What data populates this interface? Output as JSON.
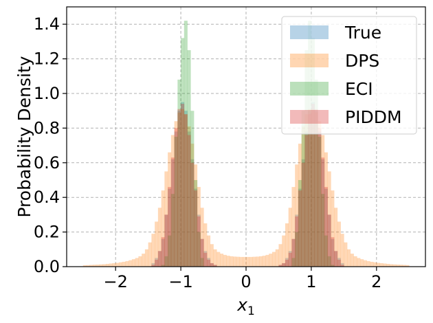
{
  "chart_data": {
    "type": "histogram",
    "xlabel": "x",
    "xlabel_subscript": "1",
    "ylabel": "Probability Density",
    "xlim": [
      -2.75,
      2.75
    ],
    "ylim": [
      0,
      1.5
    ],
    "x_ticks": [
      -2,
      -1,
      0,
      1,
      2
    ],
    "x_tick_labels": [
      "−2",
      "−1",
      "0",
      "1",
      "2"
    ],
    "y_ticks": [
      0.0,
      0.2,
      0.4,
      0.6,
      0.8,
      1.0,
      1.2,
      1.4
    ],
    "y_tick_labels": [
      "0.0",
      "0.2",
      "0.4",
      "0.6",
      "0.8",
      "1.0",
      "1.2",
      "1.4"
    ],
    "grid": true,
    "legend_position": "top-right",
    "bin_width": 0.05,
    "series": [
      {
        "name": "True",
        "color": "#1f77b4",
        "opacity": 0.3,
        "x_range": [
          -1.5,
          1.5
        ],
        "x": [
          -1.45,
          -1.4,
          -1.35,
          -1.3,
          -1.25,
          -1.2,
          -1.15,
          -1.1,
          -1.05,
          -1.0,
          -0.95,
          -0.9,
          -0.85,
          -0.8,
          -0.75,
          -0.7,
          -0.65,
          -0.6,
          -0.55,
          -0.5,
          0.5,
          0.55,
          0.6,
          0.65,
          0.7,
          0.75,
          0.8,
          0.85,
          0.9,
          0.95,
          1.0,
          1.05,
          1.1,
          1.15,
          1.2,
          1.25,
          1.3,
          1.35,
          1.4,
          1.45
        ],
        "y": [
          0.02,
          0.05,
          0.09,
          0.16,
          0.3,
          0.45,
          0.62,
          0.78,
          0.9,
          0.95,
          0.9,
          0.78,
          0.62,
          0.45,
          0.3,
          0.16,
          0.09,
          0.05,
          0.02,
          0.01,
          0.01,
          0.02,
          0.05,
          0.09,
          0.16,
          0.3,
          0.45,
          0.62,
          0.78,
          0.9,
          0.95,
          0.9,
          0.78,
          0.62,
          0.45,
          0.3,
          0.16,
          0.09,
          0.05,
          0.02
        ]
      },
      {
        "name": "DPS",
        "color": "#ff7f0e",
        "opacity": 0.3,
        "x_range": [
          -2.5,
          2.5
        ],
        "x": [
          -2.5,
          -2.45,
          -2.4,
          -2.35,
          -2.3,
          -2.25,
          -2.2,
          -2.15,
          -2.1,
          -2.05,
          -2.0,
          -1.95,
          -1.9,
          -1.85,
          -1.8,
          -1.75,
          -1.7,
          -1.65,
          -1.6,
          -1.55,
          -1.5,
          -1.45,
          -1.4,
          -1.35,
          -1.3,
          -1.25,
          -1.2,
          -1.15,
          -1.1,
          -1.05,
          -1.0,
          -0.95,
          -0.9,
          -0.85,
          -0.8,
          -0.75,
          -0.7,
          -0.65,
          -0.6,
          -0.55,
          -0.5,
          -0.45,
          -0.4,
          -0.35,
          -0.3,
          -0.25,
          -0.2,
          -0.15,
          -0.1,
          -0.05,
          0.0,
          0.05,
          0.1,
          0.15,
          0.2,
          0.25,
          0.3,
          0.35,
          0.4,
          0.45,
          0.5,
          0.55,
          0.6,
          0.65,
          0.7,
          0.75,
          0.8,
          0.85,
          0.9,
          0.95,
          1.0,
          1.05,
          1.1,
          1.15,
          1.2,
          1.25,
          1.3,
          1.35,
          1.4,
          1.45,
          1.5,
          1.55,
          1.6,
          1.65,
          1.7,
          1.75,
          1.8,
          1.85,
          1.9,
          1.95,
          2.0,
          2.05,
          2.1,
          2.15,
          2.2,
          2.25,
          2.3,
          2.35,
          2.4,
          2.45
        ],
        "y": [
          0.008,
          0.009,
          0.01,
          0.011,
          0.012,
          0.013,
          0.014,
          0.016,
          0.018,
          0.02,
          0.022,
          0.025,
          0.028,
          0.032,
          0.037,
          0.043,
          0.05,
          0.06,
          0.075,
          0.1,
          0.14,
          0.19,
          0.26,
          0.34,
          0.44,
          0.55,
          0.66,
          0.76,
          0.84,
          0.89,
          0.91,
          0.88,
          0.81,
          0.71,
          0.59,
          0.46,
          0.34,
          0.25,
          0.18,
          0.13,
          0.1,
          0.085,
          0.075,
          0.068,
          0.063,
          0.06,
          0.058,
          0.057,
          0.056,
          0.056,
          0.056,
          0.056,
          0.057,
          0.058,
          0.06,
          0.063,
          0.068,
          0.075,
          0.085,
          0.1,
          0.13,
          0.18,
          0.25,
          0.34,
          0.46,
          0.59,
          0.71,
          0.81,
          0.88,
          0.91,
          0.91,
          0.89,
          0.84,
          0.76,
          0.66,
          0.55,
          0.44,
          0.34,
          0.26,
          0.19,
          0.14,
          0.1,
          0.075,
          0.06,
          0.05,
          0.043,
          0.037,
          0.032,
          0.028,
          0.025,
          0.022,
          0.02,
          0.018,
          0.016,
          0.014,
          0.013,
          0.012,
          0.011,
          0.01,
          0.009
        ]
      },
      {
        "name": "ECI",
        "color": "#2ca02c",
        "opacity": 0.3,
        "x_range": [
          -1.35,
          1.35
        ],
        "x": [
          -1.3,
          -1.25,
          -1.2,
          -1.15,
          -1.1,
          -1.05,
          -1.0,
          -0.95,
          -0.9,
          -0.85,
          -0.8,
          -0.75,
          -0.7,
          0.7,
          0.75,
          0.8,
          0.85,
          0.9,
          0.95,
          1.0,
          1.05,
          1.1,
          1.15,
          1.2,
          1.25,
          1.3
        ],
        "y": [
          0.01,
          0.06,
          0.18,
          0.42,
          0.75,
          1.08,
          1.32,
          1.42,
          1.25,
          0.9,
          0.5,
          0.2,
          0.05,
          0.05,
          0.2,
          0.5,
          0.9,
          1.25,
          1.42,
          1.32,
          1.08,
          0.75,
          0.42,
          0.18,
          0.06,
          0.01
        ]
      },
      {
        "name": "PIDDM",
        "color": "#d62728",
        "opacity": 0.3,
        "x_range": [
          -1.5,
          1.5
        ],
        "x": [
          -1.45,
          -1.4,
          -1.35,
          -1.3,
          -1.25,
          -1.2,
          -1.15,
          -1.1,
          -1.05,
          -1.0,
          -0.95,
          -0.9,
          -0.85,
          -0.8,
          -0.75,
          -0.7,
          -0.65,
          -0.6,
          -0.55,
          -0.5,
          0.5,
          0.55,
          0.6,
          0.65,
          0.7,
          0.75,
          0.8,
          0.85,
          0.9,
          0.95,
          1.0,
          1.05,
          1.1,
          1.15,
          1.2,
          1.25,
          1.3,
          1.35,
          1.4,
          1.45
        ],
        "y": [
          0.01,
          0.04,
          0.09,
          0.17,
          0.3,
          0.46,
          0.63,
          0.8,
          0.91,
          0.94,
          0.88,
          0.76,
          0.6,
          0.44,
          0.29,
          0.16,
          0.08,
          0.04,
          0.02,
          0.01,
          0.01,
          0.02,
          0.04,
          0.08,
          0.16,
          0.29,
          0.44,
          0.6,
          0.76,
          0.88,
          0.94,
          0.91,
          0.8,
          0.63,
          0.46,
          0.3,
          0.17,
          0.09,
          0.04,
          0.01
        ]
      }
    ]
  }
}
